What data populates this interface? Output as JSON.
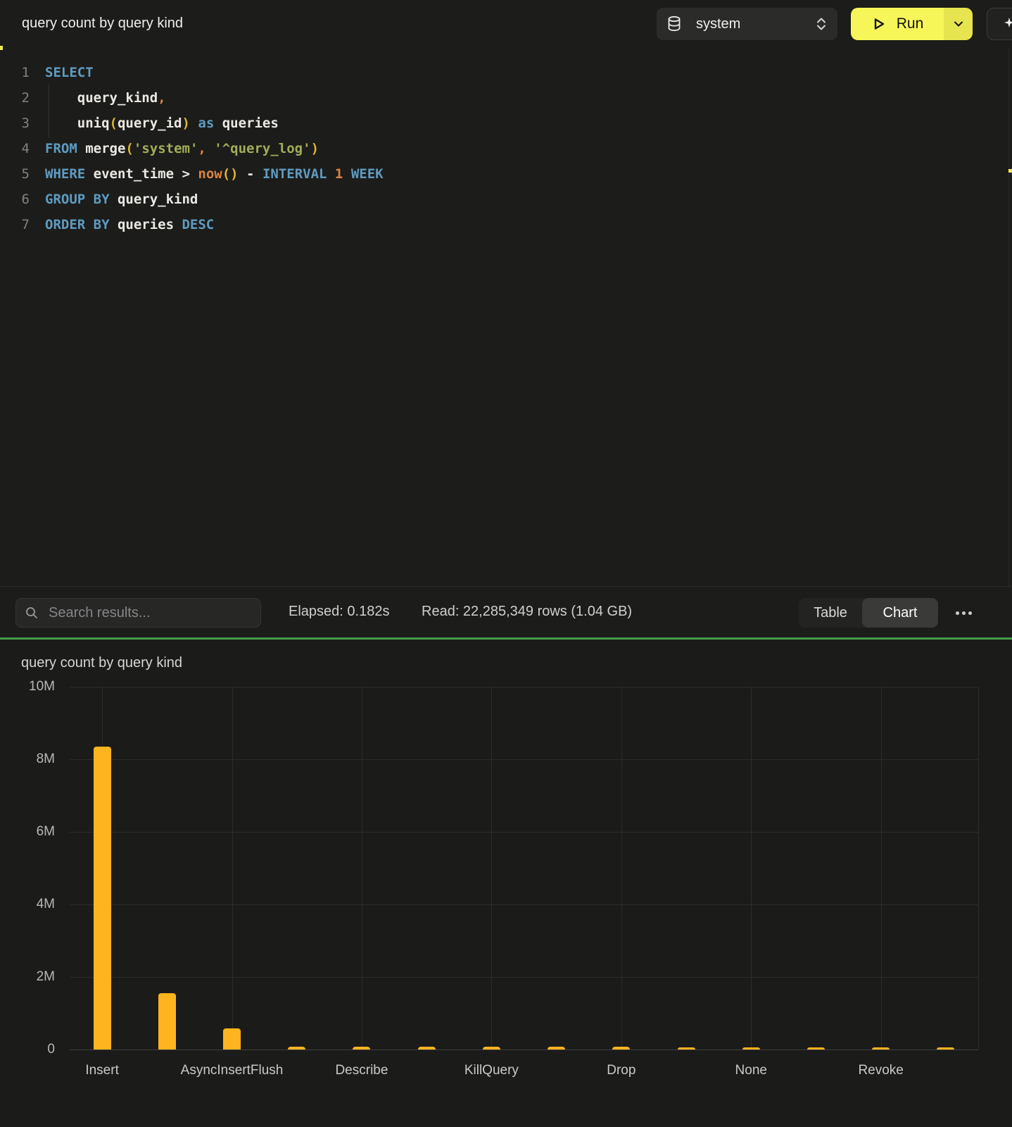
{
  "header": {
    "title": "query count by query kind",
    "database_selector": {
      "value": "system",
      "icon": "database-icon"
    },
    "run_button": {
      "label": "Run",
      "icon": "play-icon",
      "caret_icon": "chevron-down-icon"
    },
    "ai_button": {
      "icon": "sparkles-icon"
    }
  },
  "editor": {
    "lines": [
      {
        "n": "1",
        "tokens": [
          [
            "SELECT",
            "kw"
          ]
        ]
      },
      {
        "n": "2",
        "tokens": [
          [
            "    query_kind",
            "id"
          ],
          [
            ",",
            "or"
          ]
        ]
      },
      {
        "n": "3",
        "tokens": [
          [
            "    uniq",
            "id"
          ],
          [
            "(",
            "au"
          ],
          [
            "query_id",
            "id"
          ],
          [
            ")",
            "au"
          ],
          [
            " ",
            "id"
          ],
          [
            "as",
            "kw"
          ],
          [
            " queries",
            "id"
          ]
        ]
      },
      {
        "n": "4",
        "tokens": [
          [
            "FROM",
            "kw"
          ],
          [
            " ",
            "id"
          ],
          [
            "merge",
            "fn"
          ],
          [
            "(",
            "au"
          ],
          [
            "'system'",
            "str"
          ],
          [
            ",",
            "or"
          ],
          [
            " ",
            "id"
          ],
          [
            "'^query_log'",
            "str"
          ],
          [
            ")",
            "au"
          ]
        ]
      },
      {
        "n": "5",
        "tokens": [
          [
            "WHERE",
            "kw"
          ],
          [
            " event_time ",
            "id"
          ],
          [
            ">",
            "id"
          ],
          [
            " ",
            "id"
          ],
          [
            "now",
            "or"
          ],
          [
            "()",
            "au"
          ],
          [
            " - ",
            "id"
          ],
          [
            "INTERVAL",
            "kw"
          ],
          [
            " ",
            "id"
          ],
          [
            "1",
            "or"
          ],
          [
            " ",
            "id"
          ],
          [
            "WEEK",
            "kw"
          ]
        ]
      },
      {
        "n": "6",
        "tokens": [
          [
            "GROUP BY",
            "kw"
          ],
          [
            " query_kind",
            "id"
          ]
        ]
      },
      {
        "n": "7",
        "tokens": [
          [
            "ORDER BY",
            "kw"
          ],
          [
            " queries",
            "id"
          ],
          [
            " DESC",
            "kw"
          ]
        ]
      }
    ]
  },
  "results_toolbar": {
    "search_placeholder": "Search results...",
    "elapsed_label": "Elapsed: 0.182s",
    "read_label": "Read: 22,285,349 rows (1.04 GB)",
    "view_toggle": {
      "options": [
        "Table",
        "Chart"
      ],
      "active": "Chart"
    },
    "more_icon": "ellipsis-icon"
  },
  "colors": {
    "run_button_yellow": "#f7f659",
    "run_caret_yellow": "#e6e44f",
    "success_green": "#479a47",
    "bar_orange": "#feb41f"
  },
  "chart_data": {
    "type": "bar",
    "title": "query count by query kind",
    "xlabel": "",
    "ylabel": "",
    "ylim": [
      0,
      10000000
    ],
    "grid": true,
    "legend": "none",
    "bar_color": "#feb41f",
    "y_ticks": [
      {
        "v": 0,
        "label": "0"
      },
      {
        "v": 2000000,
        "label": "2M"
      },
      {
        "v": 4000000,
        "label": "4M"
      },
      {
        "v": 6000000,
        "label": "6M"
      },
      {
        "v": 8000000,
        "label": "8M"
      },
      {
        "v": 10000000,
        "label": "10M"
      }
    ],
    "x_tick_labels": [
      "Insert",
      "AsyncInsertFlush",
      "Describe",
      "KillQuery",
      "Drop",
      "None",
      "Revoke"
    ],
    "labeled_bar_indices": [
      0,
      2,
      4,
      6,
      8,
      10,
      12
    ],
    "values": [
      8350000,
      1550000,
      580000,
      80000,
      78000,
      75000,
      72000,
      70000,
      68000,
      66000,
      64000,
      62000,
      60000,
      58000
    ]
  }
}
